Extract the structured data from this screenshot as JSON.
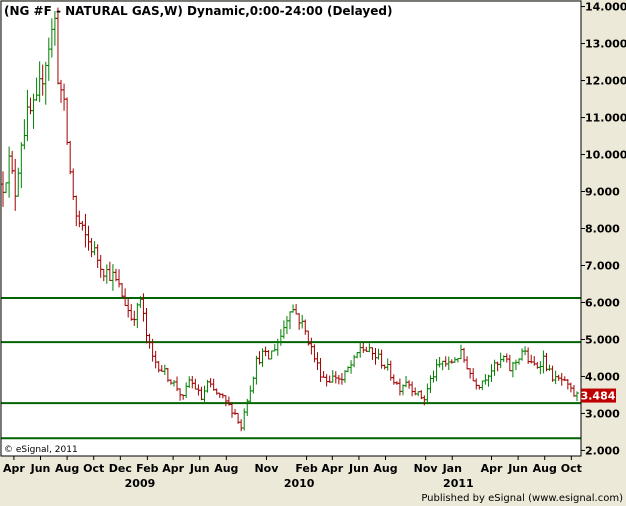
{
  "chart_data": {
    "type": "ohlc",
    "title": "(NG #F - NATURAL GAS,W) Dynamic,0:00-24:00 (Delayed)",
    "y_axis": {
      "position": "right",
      "range": [
        1.85,
        14.15
      ],
      "ticks": [
        "14.000",
        "13.000",
        "12.000",
        "11.000",
        "10.000",
        "9.000",
        "8.000",
        "7.000",
        "6.000",
        "5.000",
        "4.000",
        "3.000",
        "2.000"
      ]
    },
    "x_axis": {
      "range": [
        "2008-03-07",
        "2011-10-14"
      ],
      "months": [
        {
          "label": "Apr",
          "date": "2008-04-01"
        },
        {
          "label": "Jun",
          "date": "2008-06-01"
        },
        {
          "label": "Aug",
          "date": "2008-08-01"
        },
        {
          "label": "Oct",
          "date": "2008-10-01"
        },
        {
          "label": "Dec",
          "date": "2008-12-01"
        },
        {
          "label": "Feb",
          "date": "2009-02-01"
        },
        {
          "label": "Apr",
          "date": "2009-04-01"
        },
        {
          "label": "Jun",
          "date": "2009-06-01"
        },
        {
          "label": "Aug",
          "date": "2009-08-01"
        },
        {
          "label": "Nov",
          "date": "2009-11-01"
        },
        {
          "label": "Feb",
          "date": "2010-02-01"
        },
        {
          "label": "Apr",
          "date": "2010-04-01"
        },
        {
          "label": "Jun",
          "date": "2010-06-01"
        },
        {
          "label": "Aug",
          "date": "2010-08-01"
        },
        {
          "label": "Nov",
          "date": "2010-11-01"
        },
        {
          "label": "Jan",
          "date": "2011-01-01"
        },
        {
          "label": "Apr",
          "date": "2011-04-01"
        },
        {
          "label": "Jun",
          "date": "2011-06-01"
        },
        {
          "label": "Aug",
          "date": "2011-08-01"
        },
        {
          "label": "Oct",
          "date": "2011-10-01"
        }
      ],
      "years": [
        {
          "label": "2009",
          "date": "2009-01-15"
        },
        {
          "label": "2010",
          "date": "2010-01-15"
        },
        {
          "label": "2011",
          "date": "2011-01-15"
        }
      ]
    },
    "horizontal_lines": [
      6.12,
      4.93,
      3.28,
      2.33
    ],
    "last_price": "3.484",
    "colors": {
      "up": "#008000",
      "down": "#A00000",
      "levels": "#006400",
      "last_price_bg": "#C00000",
      "plot_bg": "#FFFFFF"
    },
    "grid": false,
    "path": [
      [
        "2008-03-07",
        9.2
      ],
      [
        "2008-03-21",
        9.8
      ],
      [
        "2008-04-04",
        9.0
      ],
      [
        "2008-04-18",
        10.4
      ],
      [
        "2008-05-02",
        11.0
      ],
      [
        "2008-05-23",
        11.3
      ],
      [
        "2008-06-06",
        12.2
      ],
      [
        "2008-06-20",
        13.0
      ],
      [
        "2008-07-04",
        13.6
      ],
      [
        "2008-07-11",
        12.2
      ],
      [
        "2008-07-25",
        11.2
      ],
      [
        "2008-08-08",
        9.5
      ],
      [
        "2008-08-22",
        8.3
      ],
      [
        "2008-09-05",
        7.9
      ],
      [
        "2008-09-26",
        7.5
      ],
      [
        "2008-10-10",
        7.2
      ],
      [
        "2008-10-24",
        6.9
      ],
      [
        "2008-11-14",
        6.7
      ],
      [
        "2008-11-28",
        6.4
      ],
      [
        "2008-12-12",
        6.0
      ],
      [
        "2008-12-26",
        5.6
      ],
      [
        "2009-01-09",
        5.8
      ],
      [
        "2009-01-16",
        6.1
      ],
      [
        "2009-01-30",
        5.1
      ],
      [
        "2009-02-13",
        4.5
      ],
      [
        "2009-02-27",
        4.3
      ],
      [
        "2009-03-20",
        4.0
      ],
      [
        "2009-04-10",
        3.7
      ],
      [
        "2009-04-24",
        3.4
      ],
      [
        "2009-05-08",
        3.9
      ],
      [
        "2009-05-22",
        3.7
      ],
      [
        "2009-06-05",
        3.4
      ],
      [
        "2009-06-19",
        3.8
      ],
      [
        "2009-07-03",
        3.6
      ],
      [
        "2009-07-24",
        3.4
      ],
      [
        "2009-08-07",
        3.2
      ],
      [
        "2009-08-21",
        3.0
      ],
      [
        "2009-09-04",
        2.6
      ],
      [
        "2009-09-11",
        3.1
      ],
      [
        "2009-09-25",
        3.7
      ],
      [
        "2009-10-09",
        4.4
      ],
      [
        "2009-10-23",
        4.6
      ],
      [
        "2009-11-06",
        4.5
      ],
      [
        "2009-11-20",
        4.8
      ],
      [
        "2009-12-04",
        5.1
      ],
      [
        "2009-12-18",
        5.6
      ],
      [
        "2009-12-25",
        5.9
      ],
      [
        "2010-01-08",
        5.7
      ],
      [
        "2010-01-22",
        5.4
      ],
      [
        "2010-02-05",
        5.0
      ],
      [
        "2010-02-19",
        4.5
      ],
      [
        "2010-03-05",
        4.1
      ],
      [
        "2010-03-19",
        3.9
      ],
      [
        "2010-04-09",
        4.0
      ],
      [
        "2010-04-23",
        3.9
      ],
      [
        "2010-05-07",
        4.2
      ],
      [
        "2010-05-21",
        4.4
      ],
      [
        "2010-06-04",
        4.8
      ],
      [
        "2010-06-18",
        4.7
      ],
      [
        "2010-07-02",
        4.6
      ],
      [
        "2010-07-16",
        4.5
      ],
      [
        "2010-08-06",
        4.2
      ],
      [
        "2010-08-20",
        3.9
      ],
      [
        "2010-09-03",
        3.7
      ],
      [
        "2010-09-17",
        3.9
      ],
      [
        "2010-10-01",
        3.7
      ],
      [
        "2010-10-15",
        3.5
      ],
      [
        "2010-10-29",
        3.4
      ],
      [
        "2010-11-12",
        3.9
      ],
      [
        "2010-11-26",
        4.2
      ],
      [
        "2010-12-10",
        4.4
      ],
      [
        "2010-12-24",
        4.3
      ],
      [
        "2011-01-07",
        4.5
      ],
      [
        "2011-01-21",
        4.6
      ],
      [
        "2011-02-04",
        4.3
      ],
      [
        "2011-02-18",
        3.9
      ],
      [
        "2011-03-04",
        3.8
      ],
      [
        "2011-03-18",
        4.0
      ],
      [
        "2011-04-01",
        4.2
      ],
      [
        "2011-04-15",
        4.3
      ],
      [
        "2011-04-29",
        4.5
      ],
      [
        "2011-05-13",
        4.2
      ],
      [
        "2011-05-27",
        4.4
      ],
      [
        "2011-06-10",
        4.7
      ],
      [
        "2011-06-17",
        4.6
      ],
      [
        "2011-07-01",
        4.3
      ],
      [
        "2011-07-15",
        4.3
      ],
      [
        "2011-07-29",
        4.5
      ],
      [
        "2011-08-12",
        4.1
      ],
      [
        "2011-08-26",
        3.9
      ],
      [
        "2011-09-09",
        3.9
      ],
      [
        "2011-09-23",
        3.7
      ],
      [
        "2011-10-07",
        3.5
      ],
      [
        "2011-10-14",
        3.48
      ]
    ]
  },
  "footer": {
    "copyright": "© eSignal, 2011",
    "published": "Published by eSignal (www.esignal.com)"
  }
}
